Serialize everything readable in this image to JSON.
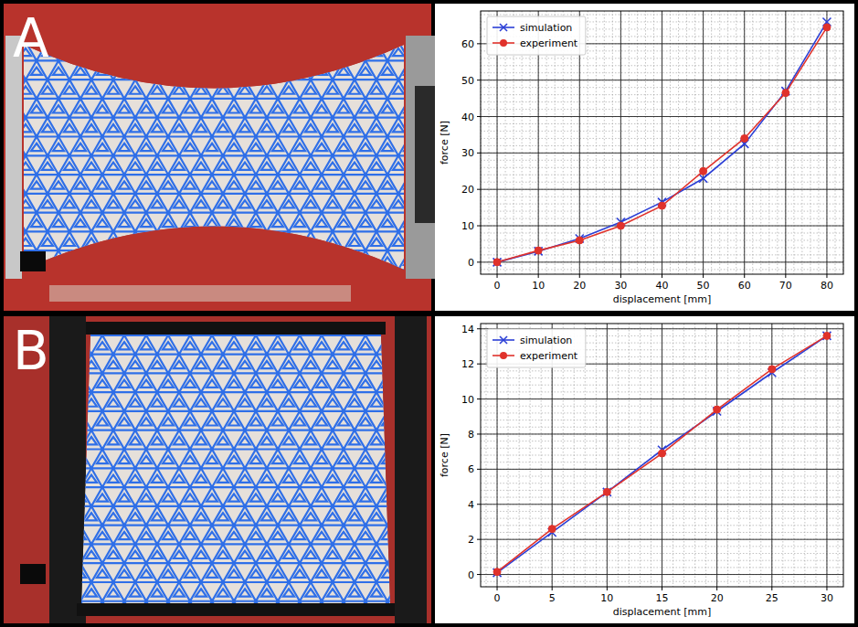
{
  "chart_data": [
    {
      "type": "line",
      "panel": "A",
      "x_label": "displacement [mm]",
      "y_label": "force [N]",
      "x": [
        0,
        10,
        20,
        30,
        40,
        50,
        60,
        70,
        80
      ],
      "series": [
        {
          "name": "simulation",
          "color": "#2b3fd6",
          "marker": "x",
          "line_style": "solid",
          "values": [
            0,
            3,
            6.5,
            11,
            16.5,
            23,
            32.5,
            47,
            66
          ]
        },
        {
          "name": "experiment",
          "color": "#e0322b",
          "marker": "o",
          "line_style": "solid",
          "values": [
            0,
            3.2,
            6,
            10,
            15.5,
            25,
            34,
            46.5,
            64.5
          ]
        }
      ],
      "xlim": [
        -4,
        84
      ],
      "ylim": [
        -3.3,
        69
      ],
      "xticks": [
        0,
        10,
        20,
        30,
        40,
        50,
        60,
        70,
        80
      ],
      "yticks": [
        0,
        10,
        20,
        30,
        40,
        50,
        60
      ],
      "grid": true,
      "legend": "upper left"
    },
    {
      "type": "line",
      "panel": "B",
      "x_label": "displacement [mm]",
      "y_label": "force [N]",
      "x": [
        0,
        5,
        10,
        15,
        20,
        25,
        30
      ],
      "series": [
        {
          "name": "simulation",
          "color": "#2b3fd6",
          "marker": "x",
          "line_style": "solid",
          "values": [
            0.1,
            2.4,
            4.7,
            7.1,
            9.3,
            11.5,
            13.6
          ]
        },
        {
          "name": "experiment",
          "color": "#e0322b",
          "marker": "o",
          "line_style": "solid",
          "values": [
            0.15,
            2.6,
            4.7,
            6.9,
            9.4,
            11.7,
            13.6
          ]
        }
      ],
      "xlim": [
        -1.5,
        31.5
      ],
      "ylim": [
        -0.7,
        14.3
      ],
      "xticks": [
        0,
        5,
        10,
        15,
        20,
        25,
        30
      ],
      "yticks": [
        0,
        2,
        4,
        6,
        8,
        10,
        12,
        14
      ],
      "grid": true,
      "legend": "upper left"
    }
  ]
}
